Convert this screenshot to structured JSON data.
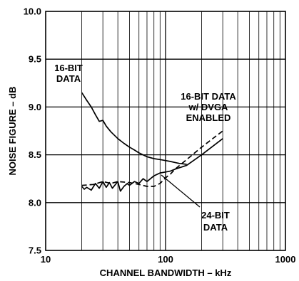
{
  "chart_data": {
    "type": "line",
    "xlabel": "CHANNEL BANDWIDTH – kHz",
    "ylabel": "NOISE FIGURE – dB",
    "xscale": "log",
    "xlim": [
      10,
      1000
    ],
    "ylim": [
      7.5,
      10.0
    ],
    "grid": true,
    "x_ticks": [
      {
        "value": 10,
        "label": "10"
      },
      {
        "value": 100,
        "label": "100"
      },
      {
        "value": 1000,
        "label": "1000"
      }
    ],
    "y_ticks": [
      {
        "value": 7.5,
        "label": "7.5"
      },
      {
        "value": 8.0,
        "label": "8.0"
      },
      {
        "value": 8.5,
        "label": "8.5"
      },
      {
        "value": 9.0,
        "label": "9.0"
      },
      {
        "value": 9.5,
        "label": "9.5"
      },
      {
        "value": 10.0,
        "label": "10.0"
      }
    ],
    "series": [
      {
        "key": "sixteen_bit",
        "style": "solid",
        "x": [
          20,
          22,
          24,
          26,
          28,
          30,
          32,
          35,
          40,
          45,
          50,
          55,
          60,
          70,
          80,
          90,
          100,
          110,
          120,
          130,
          150
        ],
        "y": [
          9.15,
          9.07,
          9.0,
          8.92,
          8.85,
          8.86,
          8.8,
          8.74,
          8.67,
          8.62,
          8.58,
          8.55,
          8.52,
          8.48,
          8.46,
          8.45,
          8.44,
          8.43,
          8.42,
          8.41,
          8.4
        ]
      },
      {
        "key": "twentyfour_bit",
        "style": "solid",
        "x": [
          20,
          21,
          22,
          24,
          26,
          28,
          30,
          32,
          34,
          36,
          40,
          42,
          45,
          48,
          50,
          55,
          60,
          65,
          70,
          80,
          90,
          100,
          110,
          120,
          150,
          200,
          300
        ],
        "y": [
          8.17,
          8.14,
          8.16,
          8.13,
          8.2,
          8.15,
          8.22,
          8.16,
          8.21,
          8.15,
          8.22,
          8.12,
          8.17,
          8.2,
          8.18,
          8.22,
          8.2,
          8.25,
          8.22,
          8.28,
          8.31,
          8.32,
          8.33,
          8.35,
          8.39,
          8.5,
          8.67
        ]
      },
      {
        "key": "dvga",
        "style": "dashed",
        "x": [
          20,
          25,
          30,
          35,
          40,
          50,
          60,
          70,
          80,
          90,
          100,
          110,
          120,
          150,
          200,
          300
        ],
        "y": [
          8.18,
          8.19,
          8.22,
          8.2,
          8.22,
          8.21,
          8.19,
          8.17,
          8.17,
          8.2,
          8.26,
          8.3,
          8.35,
          8.45,
          8.58,
          8.75
        ]
      }
    ],
    "annotations": [
      {
        "key": "a16",
        "lines": [
          "16-BIT",
          "DATA"
        ]
      },
      {
        "key": "advga",
        "lines": [
          "16-BIT DATA",
          "w/ DVGA",
          "ENABLED"
        ]
      },
      {
        "key": "a24",
        "lines": [
          "24-BIT",
          "DATA"
        ]
      }
    ]
  }
}
